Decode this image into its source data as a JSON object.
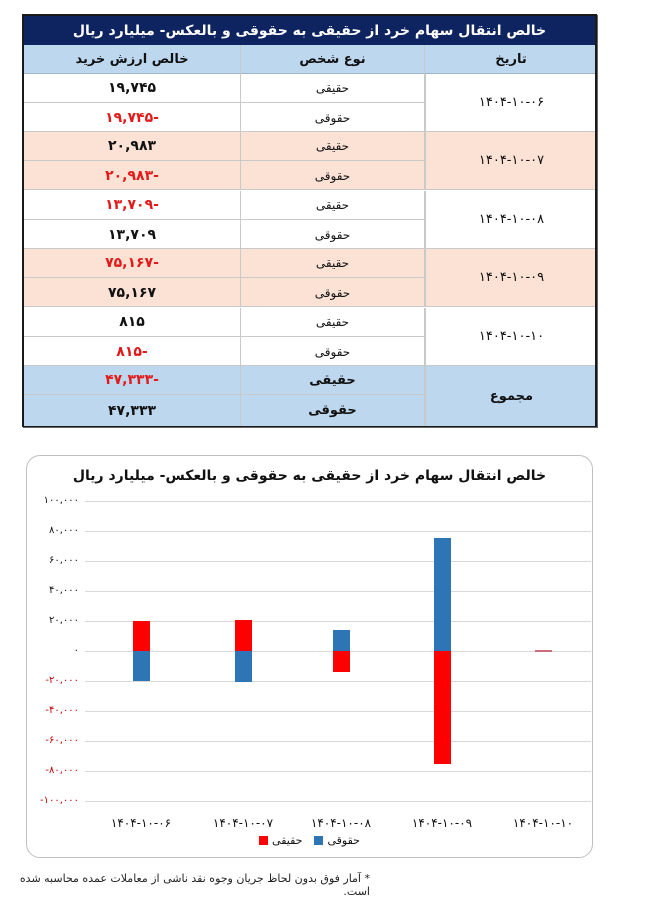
{
  "table": {
    "title": "خالص انتقال سهام خرد از حقیقی به حقوقی و بالعکس- میلیارد ریال",
    "headers": {
      "value": "خالص ارزش خرید",
      "type": "نوع شخص",
      "date": "تاریخ"
    },
    "groups": [
      {
        "date": "۱۴۰۴-۱۰-۰۶",
        "rows": [
          {
            "type": "حقیقی",
            "value": "۱۹,۷۴۵",
            "negative": false
          },
          {
            "type": "حقوقی",
            "value": "-۱۹,۷۴۵",
            "negative": true
          }
        ]
      },
      {
        "date": "۱۴۰۴-۱۰-۰۷",
        "rows": [
          {
            "type": "حقیقی",
            "value": "۲۰,۹۸۳",
            "negative": false
          },
          {
            "type": "حقوقی",
            "value": "-۲۰,۹۸۳",
            "negative": true
          }
        ]
      },
      {
        "date": "۱۴۰۴-۱۰-۰۸",
        "rows": [
          {
            "type": "حقیقی",
            "value": "-۱۳,۷۰۹",
            "negative": true
          },
          {
            "type": "حقوقی",
            "value": "۱۳,۷۰۹",
            "negative": false
          }
        ]
      },
      {
        "date": "۱۴۰۴-۱۰-۰۹",
        "rows": [
          {
            "type": "حقیقی",
            "value": "-۷۵,۱۶۷",
            "negative": true
          },
          {
            "type": "حقوقی",
            "value": "۷۵,۱۶۷",
            "negative": false
          }
        ]
      },
      {
        "date": "۱۴۰۴-۱۰-۱۰",
        "rows": [
          {
            "type": "حقیقی",
            "value": "۸۱۵",
            "negative": false
          },
          {
            "type": "حقوقی",
            "value": "-۸۱۵",
            "negative": true
          }
        ]
      }
    ],
    "total": {
      "label": "مجموع",
      "rows": [
        {
          "type": "حقیقی",
          "value": "-۴۷,۳۳۳",
          "negative": true
        },
        {
          "type": "حقوقی",
          "value": "۴۷,۳۳۳",
          "negative": false
        }
      ]
    },
    "colors": {
      "title_bg": "#0e2460",
      "header_bg": "#bdd7ee",
      "shade_bg": "#fbe2d5",
      "negative_text": "#e31a1a"
    }
  },
  "chart_data": {
    "type": "bar",
    "stacked": true,
    "title": "خالص انتقال سهام خرد از حقیقی به حقوقی و بالعکس- میلیارد ریال",
    "categories": [
      "۱۴۰۴-۱۰-۰۶",
      "۱۴۰۴-۱۰-۰۷",
      "۱۴۰۴-۱۰-۰۸",
      "۱۴۰۴-۱۰-۰۹",
      "۱۴۰۴-۱۰-۱۰"
    ],
    "series": [
      {
        "name": "حقیقی",
        "color": "#ff0000",
        "values": [
          19745,
          20983,
          -13709,
          -75167,
          815
        ]
      },
      {
        "name": "حقوقی",
        "color": "#2e75b6",
        "values": [
          -19745,
          -20983,
          13709,
          75167,
          -815
        ]
      }
    ],
    "yticks": [
      {
        "value": 100000,
        "label": "۱۰۰,۰۰۰"
      },
      {
        "value": 80000,
        "label": "۸۰,۰۰۰"
      },
      {
        "value": 60000,
        "label": "۶۰,۰۰۰"
      },
      {
        "value": 40000,
        "label": "۴۰,۰۰۰"
      },
      {
        "value": 20000,
        "label": "۲۰,۰۰۰"
      },
      {
        "value": 0,
        "label": "۰"
      },
      {
        "value": -20000,
        "label": "-۲۰,۰۰۰"
      },
      {
        "value": -40000,
        "label": "-۴۰,۰۰۰"
      },
      {
        "value": -60000,
        "label": "-۶۰,۰۰۰"
      },
      {
        "value": -80000,
        "label": "-۸۰,۰۰۰"
      },
      {
        "value": -100000,
        "label": "-۱۰۰,۰۰۰"
      }
    ],
    "ylim": [
      -100000,
      100000
    ],
    "xlabel": "",
    "ylabel": "",
    "grid": true,
    "legend_position": "bottom",
    "legend": [
      "حقوقی",
      "حقیقی"
    ]
  },
  "footnote": "* آمار فوق بدون لحاظ جریان وجوه نقد ناشی از معاملات عمده محاسبه شده است."
}
